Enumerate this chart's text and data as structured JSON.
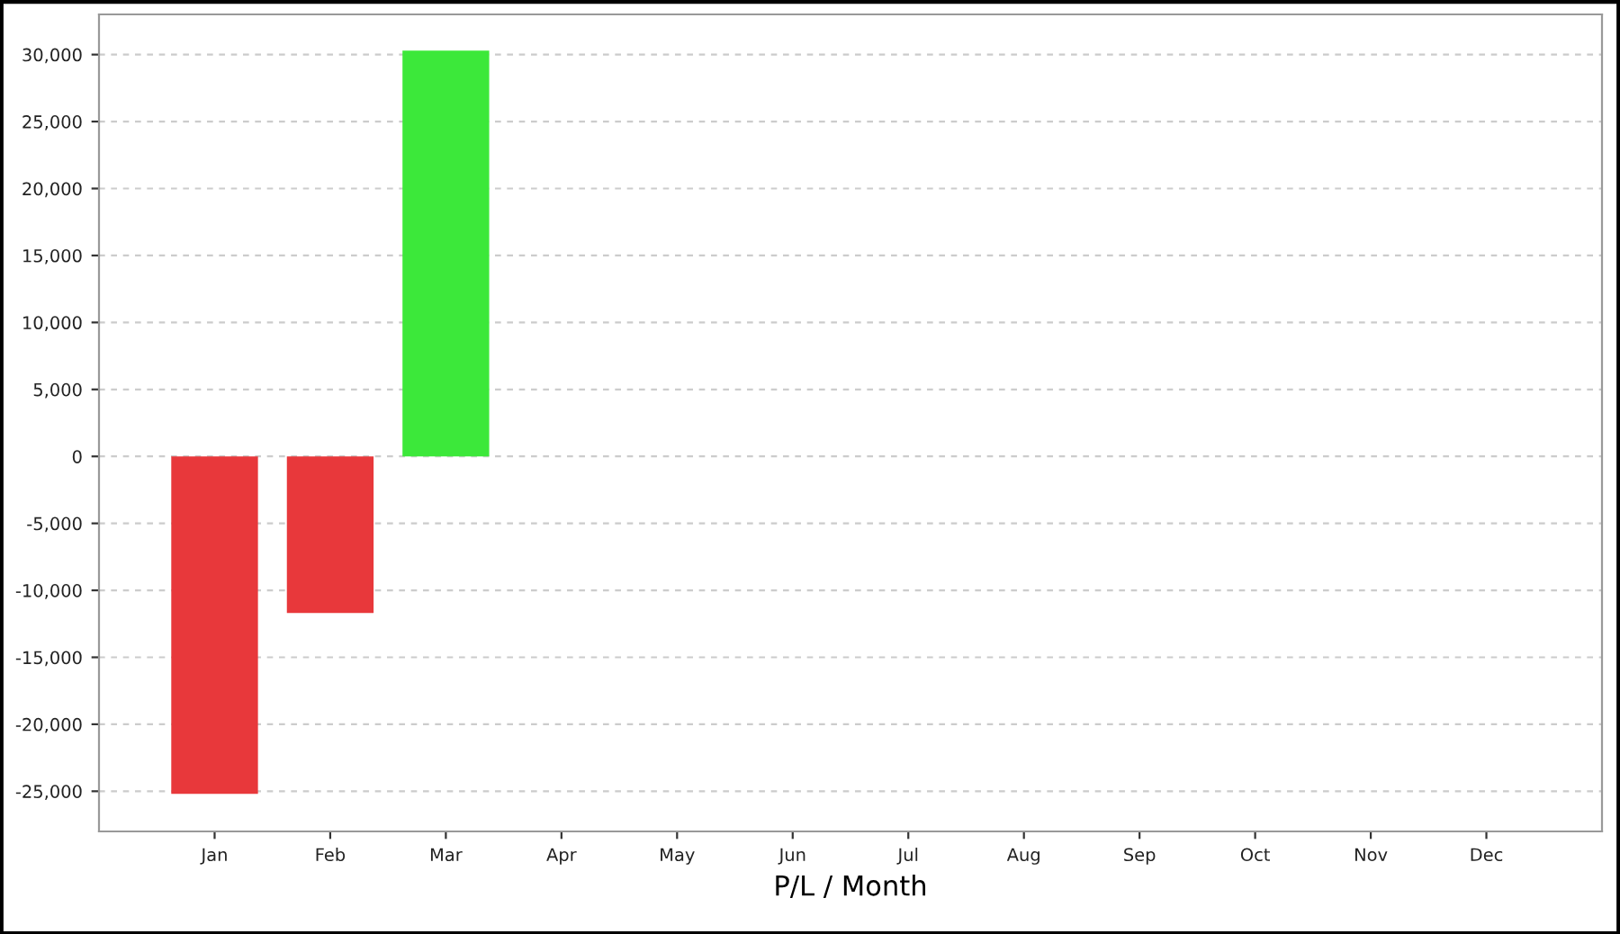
{
  "chart_data": {
    "type": "bar",
    "xlabel": "P/L / Month",
    "categories": [
      "Jan",
      "Feb",
      "Mar",
      "Apr",
      "May",
      "Jun",
      "Jul",
      "Aug",
      "Sep",
      "Oct",
      "Nov",
      "Dec"
    ],
    "values": [
      -25200,
      -11700,
      30300,
      null,
      null,
      null,
      null,
      null,
      null,
      null,
      null,
      null
    ],
    "colors": [
      "#e8383b",
      "#e8383b",
      "#3ce83a",
      "#e8383b",
      "#e8383b",
      "#e8383b",
      "#e8383b",
      "#e8383b",
      "#e8383b",
      "#e8383b",
      "#e8383b",
      "#e8383b"
    ],
    "ylim": [
      -28000,
      33000
    ],
    "yticks": [
      {
        "value": -25000,
        "label": "-25,000"
      },
      {
        "value": -20000,
        "label": "-20,000"
      },
      {
        "value": -15000,
        "label": "-15,000"
      },
      {
        "value": -10000,
        "label": "-10,000"
      },
      {
        "value": -5000,
        "label": "-5,000"
      },
      0,
      {
        "value": 5000,
        "label": "5,000"
      },
      {
        "value": 10000,
        "label": "10,000"
      },
      {
        "value": 15000,
        "label": "15,000"
      },
      {
        "value": 20000,
        "label": "20,000"
      },
      {
        "value": 25000,
        "label": "25,000"
      },
      {
        "value": 30000,
        "label": "30,000"
      }
    ],
    "grid": "y"
  }
}
